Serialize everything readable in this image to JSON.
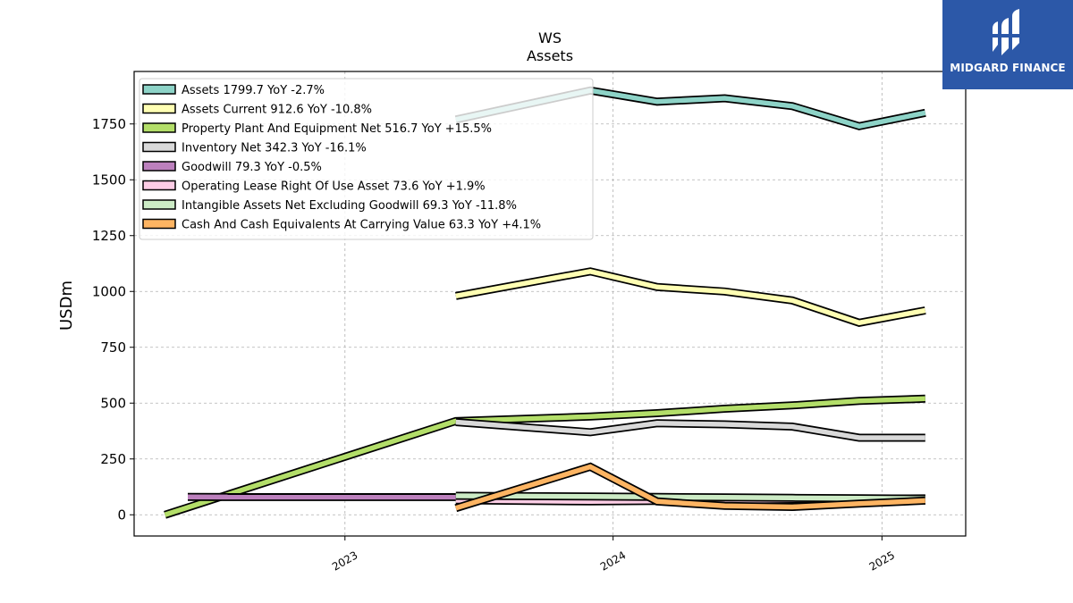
{
  "brand": {
    "name": "MIDGARD FINANCE",
    "color": "#2c58a8",
    "icon": "midgard-logo-icon"
  },
  "chart_data": {
    "type": "line",
    "title": "WS",
    "subtitle": "Assets",
    "xlabel": "",
    "ylabel": "USDm",
    "ylim": [
      -95,
      1985
    ],
    "yticks": [
      0,
      250,
      500,
      750,
      1000,
      1250,
      1500,
      1750
    ],
    "yticklabels": [
      "0",
      "250",
      "500",
      "750",
      "1000",
      "1250",
      "1500",
      "1750"
    ],
    "xlim": [
      "2022-03-20",
      "2025-04-25"
    ],
    "xticks": [
      "2023-01-01",
      "2024-01-01",
      "2025-01-01"
    ],
    "xticklabels": [
      "2023",
      "2024",
      "2025"
    ],
    "grid": true,
    "legend_position": "top-left",
    "series": [
      {
        "name": "Assets",
        "legend": "Assets  1799.7 YoY -2.7%",
        "color": "#8dd3c7",
        "x": [
          "2023-06-01",
          "2023-12-01",
          "2024-03-01",
          "2024-06-01",
          "2024-09-01",
          "2024-12-01",
          "2025-03-01"
        ],
        "y": [
          1770,
          1900,
          1850,
          1865,
          1830,
          1740,
          1800
        ]
      },
      {
        "name": "Assets Current",
        "legend": "Assets Current  912.6 YoY -10.8%",
        "color": "#ffffb3",
        "x": [
          "2023-06-01",
          "2023-12-01",
          "2024-03-01",
          "2024-06-01",
          "2024-09-01",
          "2024-12-01",
          "2025-03-01"
        ],
        "y": [
          980,
          1090,
          1020,
          1000,
          960,
          860,
          915
        ]
      },
      {
        "name": "Property Plant And Equipment Net",
        "legend": "Property Plant And Equipment Net  516.7 YoY +15.5%",
        "color": "#b3de69",
        "x": [
          "2022-05-01",
          "2023-06-01",
          "2023-12-01",
          "2024-03-01",
          "2024-06-01",
          "2024-09-01",
          "2024-12-01",
          "2025-03-01"
        ],
        "y": [
          0,
          420,
          440,
          455,
          475,
          490,
          510,
          520
        ]
      },
      {
        "name": "Inventory Net",
        "legend": "Inventory Net  342.3 YoY -16.1%",
        "color": "#d9d9d9",
        "x": [
          "2023-06-01",
          "2023-12-01",
          "2024-03-01",
          "2024-06-01",
          "2024-09-01",
          "2024-12-01",
          "2025-03-01"
        ],
        "y": [
          415,
          370,
          410,
          405,
          395,
          345,
          345
        ]
      },
      {
        "name": "Goodwill",
        "legend": "Goodwill  79.3 YoY -0.5%",
        "color": "#bc80bd",
        "x": [
          "2022-06-01",
          "2023-06-01"
        ],
        "y": [
          79.7,
          79.3
        ]
      },
      {
        "name": "Operating Lease Right Of Use Asset",
        "legend": "Operating Lease Right Of Use Asset  73.6 YoY +1.9%",
        "color": "#fccde5",
        "x": [
          "2023-06-01",
          "2023-12-01",
          "2024-03-01",
          "2024-06-01",
          "2024-09-01",
          "2024-12-01",
          "2025-03-01"
        ],
        "y": [
          65,
          60,
          62,
          65,
          68,
          72,
          73.6
        ]
      },
      {
        "name": "Intangible Assets Net Excluding Goodwill",
        "legend": "Intangible Assets Net Excluding Goodwill  69.3 YoY -11.8%",
        "color": "#ccebc5",
        "x": [
          "2023-06-01",
          "2023-12-01",
          "2024-03-01",
          "2024-06-01",
          "2024-09-01",
          "2024-12-01",
          "2025-03-01"
        ],
        "y": [
          85,
          82,
          80,
          78,
          76,
          74,
          72
        ]
      },
      {
        "name": "Cash And Cash Equivalents At Carrying Value",
        "legend": "Cash And Cash Equivalents At Carrying Value  63.3 YoY +4.1%",
        "color": "#fdb462",
        "x": [
          "2023-06-01",
          "2023-12-01",
          "2024-03-01",
          "2024-06-01",
          "2024-09-01",
          "2024-12-01",
          "2025-03-01"
        ],
        "y": [
          30,
          215,
          60,
          40,
          35,
          50,
          63.3
        ]
      }
    ]
  }
}
